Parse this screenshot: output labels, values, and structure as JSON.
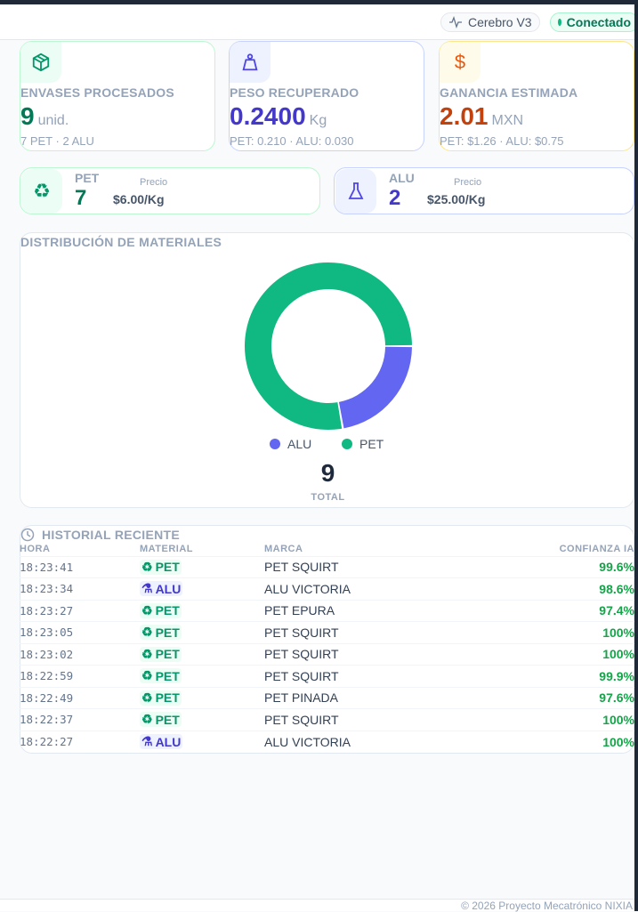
{
  "header": {
    "brain_label": "Cerebro V3",
    "status_label": "Conectado"
  },
  "kpis": [
    {
      "label": "ENVASES PROCESADOS",
      "value": "9",
      "unit": "unid.",
      "sub": "7 PET · 2 ALU",
      "color": "#047857",
      "icon": "package-icon"
    },
    {
      "label": "PESO RECUPERADO",
      "value": "0.2400",
      "unit": "Kg",
      "sub": "PET: 0.210 · ALU: 0.030",
      "color": "#4338ca",
      "icon": "weight-icon"
    },
    {
      "label": "GANANCIA ESTIMADA",
      "value": "2.01",
      "unit": "MXN",
      "sub": "PET: $1.26 · ALU: $0.75",
      "color": "#c2410c",
      "icon": "dollar-icon"
    }
  ],
  "materials": [
    {
      "name": "PET",
      "count": "7",
      "price_label": "Precio",
      "price": "$6.00/Kg",
      "color": "#047857",
      "icon": "recycle-icon"
    },
    {
      "name": "ALU",
      "count": "2",
      "price_label": "Precio",
      "price": "$25.00/Kg",
      "color": "#4338ca",
      "icon": "flask-icon"
    }
  ],
  "distribution": {
    "title": "DISTRIBUCIÓN DE MATERIALES",
    "total": "9",
    "total_label": "TOTAL"
  },
  "chart_data": {
    "type": "pie",
    "donut": true,
    "categories": [
      "ALU",
      "PET"
    ],
    "values": [
      2,
      7
    ],
    "colors": [
      "#6366f1",
      "#10b981"
    ],
    "legend_position": "bottom"
  },
  "history": {
    "title": "HISTORIAL RECIENTE",
    "columns": [
      "HORA",
      "MATERIAL",
      "MARCA",
      "CONFIANZA IA"
    ],
    "rows": [
      {
        "time": "18:23:41",
        "material": "PET",
        "brand": "PET SQUIRT",
        "conf": "99.6%"
      },
      {
        "time": "18:23:34",
        "material": "ALU",
        "brand": "ALU VICTORIA",
        "conf": "98.6%"
      },
      {
        "time": "18:23:27",
        "material": "PET",
        "brand": "PET EPURA",
        "conf": "97.4%"
      },
      {
        "time": "18:23:05",
        "material": "PET",
        "brand": "PET SQUIRT",
        "conf": "100%"
      },
      {
        "time": "18:23:02",
        "material": "PET",
        "brand": "PET SQUIRT",
        "conf": "100%"
      },
      {
        "time": "18:22:59",
        "material": "PET",
        "brand": "PET SQUIRT",
        "conf": "99.9%"
      },
      {
        "time": "18:22:49",
        "material": "PET",
        "brand": "PET PINADA",
        "conf": "97.6%"
      },
      {
        "time": "18:22:37",
        "material": "PET",
        "brand": "PET SQUIRT",
        "conf": "100%"
      },
      {
        "time": "18:22:27",
        "material": "ALU",
        "brand": "ALU VICTORIA",
        "conf": "100%"
      }
    ]
  },
  "footer": "© 2026 Proyecto Mecatrónico NIXIA"
}
